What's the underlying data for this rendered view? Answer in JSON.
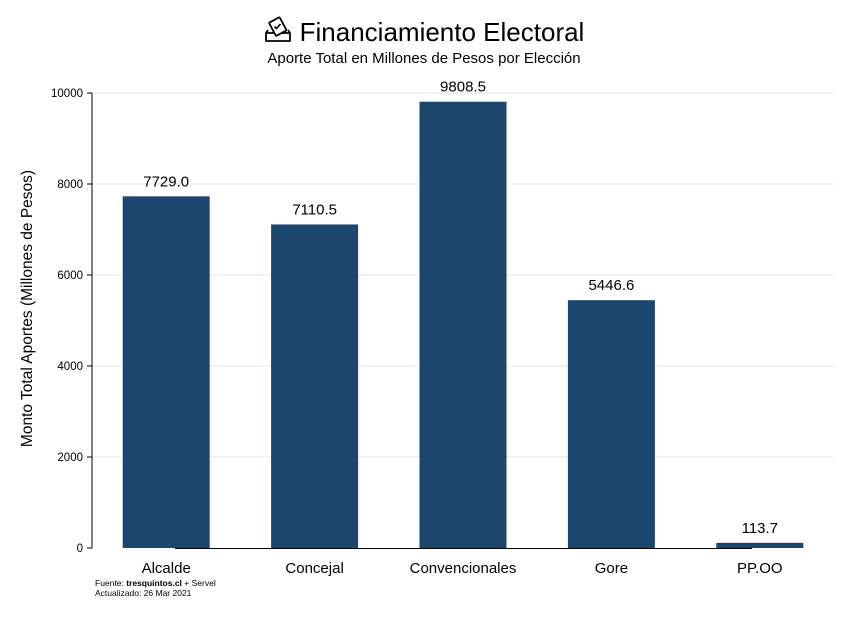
{
  "header": {
    "icon": "ballot-box-icon",
    "title": "Financiamiento Electoral",
    "subtitle": "Aporte Total en Millones de Pesos por Elección"
  },
  "footer": {
    "source_prefix": "Fuente: ",
    "source_site": "tresquintos.cl",
    "source_suffix": " + Servel",
    "updated": "Actualizado: 26 Mar 2021"
  },
  "chart_data": {
    "type": "bar",
    "title": "Financiamiento Electoral",
    "subtitle": "Aporte Total en Millones de Pesos por Elección",
    "xlabel": "",
    "ylabel": "Monto Total Aportes (Millones de Pesos)",
    "categories": [
      "Alcalde",
      "Concejal",
      "Convencionales",
      "Gore",
      "PP.OO"
    ],
    "values": [
      7729.0,
      7110.5,
      9808.5,
      5446.6,
      113.7
    ],
    "value_labels": [
      "7729.0",
      "7110.5",
      "9808.5",
      "5446.6",
      "113.7"
    ],
    "yticks": [
      0,
      2000,
      4000,
      6000,
      8000,
      10000
    ],
    "ylim": [
      0,
      10000
    ],
    "grid": true,
    "legend": "none",
    "bar_color": "#1c466e",
    "grid_color": "#e6e6e6",
    "axis_color": "#000000"
  }
}
